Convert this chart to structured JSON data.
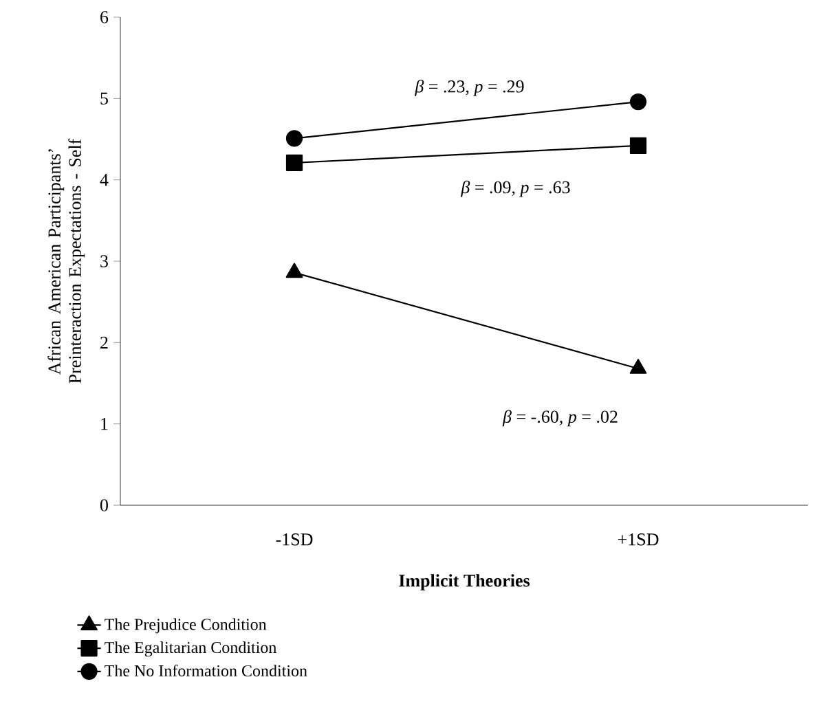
{
  "chart_data": {
    "type": "line",
    "xlabel": "**Implicit Theories**",
    "ylabel": "African American Participants’ Preinteraction Expectations - Self",
    "categories": [
      "-1SD",
      "+1SD"
    ],
    "ylim": [
      0,
      6
    ],
    "yticks": [
      0,
      1,
      2,
      3,
      4,
      5,
      6
    ],
    "grid": false,
    "legend": "bottom left",
    "series": [
      {
        "name": "The Prejudice Condition",
        "color": "#000000",
        "marker": "triangle",
        "values": [
          2.86,
          1.68
        ]
      },
      {
        "name": "The Egalitarian Condition",
        "color": "#000000",
        "marker": "square",
        "values": [
          4.21,
          4.42
        ]
      },
      {
        "name": "The No Information Condition",
        "color": "#000000",
        "marker": "circle",
        "values": [
          4.51,
          4.96
        ]
      }
    ],
    "annotations": [
      "*β* = .23, *p* = .29",
      "*β* = .09, *p* = .63",
      "*β* = -.60, *p* = .02"
    ]
  }
}
